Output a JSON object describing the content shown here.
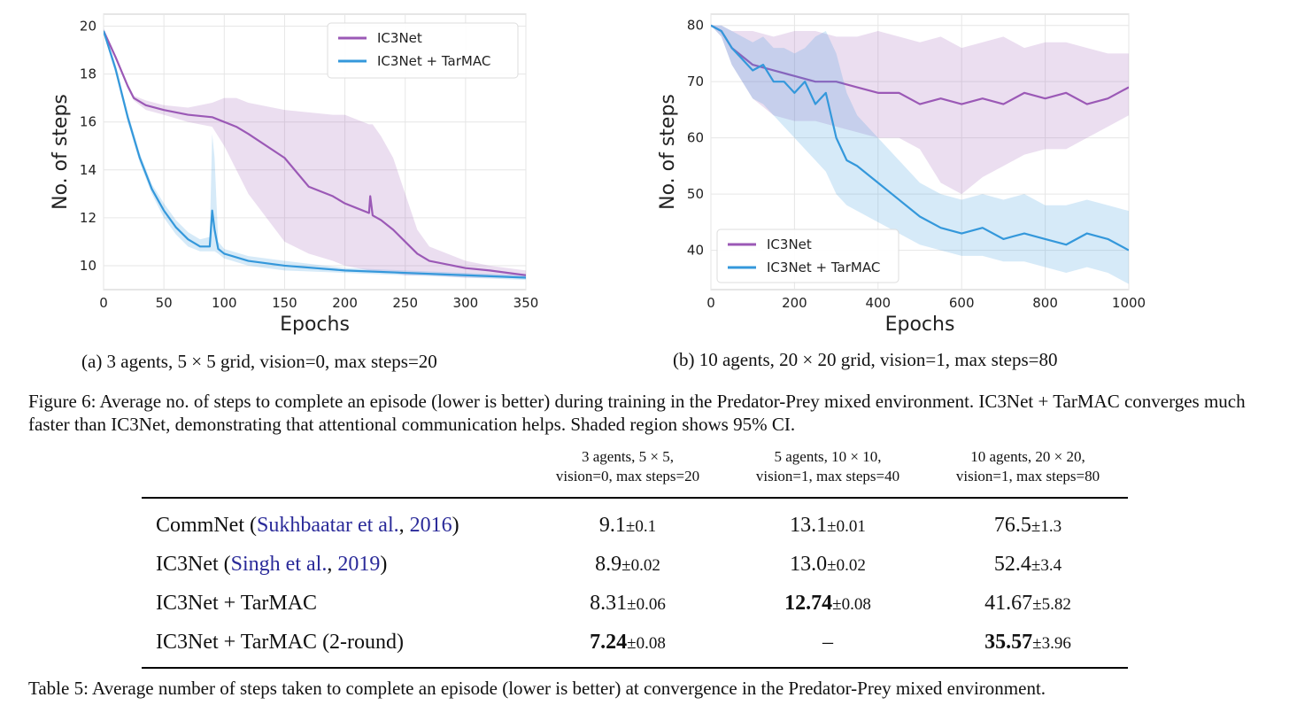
{
  "figure": {
    "caption": "Figure 6: Average no. of steps to complete an episode (lower is better) during training in the Predator-Prey mixed environment. IC3Net + TarMAC converges much faster than IC3Net, demonstrating that attentional communication helps. Shaded region shows 95% CI.",
    "subplots": [
      {
        "subcaption": "(a) 3 agents, 5 × 5 grid, vision=0, max steps=20",
        "xlabel": "Epochs",
        "ylabel": "No. of steps",
        "xticks": [
          "0",
          "50",
          "100",
          "150",
          "200",
          "250",
          "300",
          "350"
        ],
        "yticks": [
          "20",
          "18",
          "16",
          "14",
          "12",
          "10"
        ],
        "legend": [
          "IC3Net",
          "IC3Net + TarMAC"
        ]
      },
      {
        "subcaption": "(b) 10 agents, 20 × 20 grid, vision=1, max steps=80",
        "xlabel": "Epochs",
        "ylabel": "No. of steps",
        "xticks": [
          "0",
          "200",
          "400",
          "600",
          "800",
          "1000"
        ],
        "yticks": [
          "80",
          "70",
          "60",
          "50",
          "40"
        ],
        "legend": [
          "IC3Net",
          "IC3Net + TarMAC"
        ]
      }
    ]
  },
  "chart_data": [
    {
      "type": "line",
      "xlabel": "Epochs",
      "ylabel": "No. of steps",
      "xlim": [
        0,
        350
      ],
      "ylim": [
        9,
        20.5
      ],
      "grid": true,
      "legend_position": "top-right",
      "colors": {
        "IC3Net": "#9b59b6",
        "IC3Net + TarMAC": "#3498db"
      },
      "series": [
        {
          "name": "IC3Net",
          "x": [
            0,
            10,
            20,
            25,
            35,
            50,
            70,
            90,
            100,
            110,
            120,
            150,
            170,
            190,
            200,
            210,
            220,
            221,
            223,
            230,
            240,
            250,
            260,
            270,
            300,
            320,
            350
          ],
          "y": [
            19.8,
            18.7,
            17.5,
            17.0,
            16.7,
            16.5,
            16.3,
            16.2,
            16.0,
            15.8,
            15.5,
            14.5,
            13.3,
            12.9,
            12.6,
            12.4,
            12.2,
            12.9,
            12.1,
            11.9,
            11.5,
            11.0,
            10.5,
            10.2,
            9.9,
            9.8,
            9.6
          ],
          "ci_lower": [
            19.7,
            18.6,
            17.4,
            16.9,
            16.5,
            16.3,
            16.0,
            15.8,
            15.0,
            14.0,
            13.0,
            11.0,
            10.5,
            10.2,
            10.0,
            9.9,
            9.8,
            9.8,
            9.8,
            9.7,
            9.7,
            9.6,
            9.6,
            9.6,
            9.5,
            9.5,
            9.5
          ],
          "ci_upper": [
            19.9,
            18.8,
            17.6,
            17.1,
            16.9,
            16.7,
            16.6,
            16.8,
            17.0,
            17.0,
            16.8,
            16.5,
            16.4,
            16.3,
            16.3,
            16.1,
            15.9,
            15.9,
            15.9,
            15.4,
            14.5,
            13.0,
            11.5,
            10.8,
            10.2,
            10.0,
            9.8
          ]
        },
        {
          "name": "IC3Net + TarMAC",
          "x": [
            0,
            10,
            20,
            30,
            40,
            50,
            60,
            70,
            80,
            88,
            90,
            92,
            95,
            100,
            120,
            150,
            200,
            250,
            300,
            350
          ],
          "y": [
            19.8,
            18.2,
            16.2,
            14.5,
            13.2,
            12.3,
            11.6,
            11.1,
            10.8,
            10.8,
            12.3,
            11.5,
            10.7,
            10.5,
            10.2,
            10.0,
            9.8,
            9.7,
            9.6,
            9.5
          ],
          "ci_lower": [
            19.7,
            18.0,
            16.0,
            14.3,
            13.0,
            12.0,
            11.3,
            10.8,
            10.6,
            10.6,
            10.6,
            10.6,
            10.5,
            10.3,
            10.0,
            9.8,
            9.7,
            9.6,
            9.5,
            9.4
          ],
          "ci_upper": [
            19.9,
            18.4,
            16.4,
            14.7,
            13.4,
            12.6,
            11.9,
            11.4,
            11.1,
            11.2,
            15.5,
            14.5,
            11.0,
            10.7,
            10.4,
            10.2,
            9.9,
            9.8,
            9.7,
            9.6
          ]
        }
      ]
    },
    {
      "type": "line",
      "xlabel": "Epochs",
      "ylabel": "No. of steps",
      "xlim": [
        0,
        1000
      ],
      "ylim": [
        33,
        82
      ],
      "grid": true,
      "legend_position": "bottom-left",
      "colors": {
        "IC3Net": "#9b59b6",
        "IC3Net + TarMAC": "#3498db"
      },
      "series": [
        {
          "name": "IC3Net",
          "x": [
            0,
            25,
            50,
            100,
            150,
            200,
            250,
            300,
            350,
            400,
            450,
            500,
            550,
            600,
            650,
            700,
            750,
            800,
            850,
            900,
            950,
            1000
          ],
          "y": [
            80,
            79,
            76,
            73,
            72,
            71,
            70,
            70,
            69,
            68,
            68,
            66,
            67,
            66,
            67,
            66,
            68,
            67,
            68,
            66,
            67,
            69
          ],
          "ci_lower": [
            80,
            78,
            73,
            67,
            64,
            63,
            63,
            62,
            61,
            60,
            60,
            58,
            52,
            50,
            53,
            55,
            57,
            58,
            58,
            60,
            62,
            64
          ],
          "ci_upper": [
            80,
            80,
            79,
            79,
            78,
            79,
            79,
            78,
            78,
            79,
            78,
            77,
            78,
            76,
            77,
            78,
            76,
            77,
            77,
            76,
            75,
            75
          ]
        },
        {
          "name": "IC3Net + TarMAC",
          "x": [
            0,
            25,
            50,
            75,
            100,
            125,
            150,
            175,
            200,
            225,
            250,
            275,
            300,
            325,
            350,
            400,
            450,
            500,
            550,
            600,
            650,
            700,
            750,
            800,
            850,
            900,
            950,
            1000
          ],
          "y": [
            80,
            79,
            76,
            74,
            72,
            73,
            70,
            70,
            68,
            70,
            66,
            68,
            60,
            56,
            55,
            52,
            49,
            46,
            44,
            43,
            44,
            42,
            43,
            42,
            41,
            43,
            42,
            40
          ],
          "ci_lower": [
            80,
            78,
            73,
            70,
            67,
            66,
            64,
            62,
            60,
            58,
            56,
            54,
            50,
            48,
            47,
            45,
            43,
            41,
            40,
            39,
            39,
            38,
            38,
            37,
            36,
            37,
            36,
            34
          ],
          "ci_upper": [
            80,
            80,
            79,
            78,
            77,
            78,
            76,
            76,
            75,
            76,
            78,
            79,
            75,
            68,
            64,
            60,
            56,
            52,
            50,
            49,
            50,
            49,
            50,
            48,
            48,
            49,
            48,
            47
          ]
        }
      ]
    }
  ],
  "table": {
    "caption": "Table 5: Average number of steps taken to complete an episode (lower is better) at convergence in the Predator-Prey mixed environment.",
    "headers": [
      {
        "line1": "3 agents, 5 × 5,",
        "line2": "vision=0, max steps=20"
      },
      {
        "line1": "5 agents, 10 × 10,",
        "line2": "vision=1, max steps=40"
      },
      {
        "line1": "10 agents, 20 × 20,",
        "line2": "vision=1, max steps=80"
      }
    ],
    "rows": [
      {
        "method": "CommNet",
        "open": " (",
        "cite_name": "Sukhbaatar et al.",
        "sep": ", ",
        "cite_year": "2016",
        "close": ")",
        "cells": [
          {
            "v": "9.1",
            "pm": "±0.1"
          },
          {
            "v": "13.1",
            "pm": "±0.01"
          },
          {
            "v": "76.5",
            "pm": "±1.3"
          }
        ]
      },
      {
        "method": "IC3Net",
        "open": " (",
        "cite_name": "Singh et al.",
        "sep": ", ",
        "cite_year": "2019",
        "close": ")",
        "cells": [
          {
            "v": "8.9",
            "pm": "±0.02"
          },
          {
            "v": "13.0",
            "pm": "±0.02"
          },
          {
            "v": "52.4",
            "pm": "±3.4"
          }
        ]
      },
      {
        "method": "IC3Net + TarMAC",
        "cells": [
          {
            "v": "8.31",
            "pm": "±0.06"
          },
          {
            "v": "12.74",
            "pm": "±0.08"
          },
          {
            "v": "41.67",
            "pm": "±5.82"
          }
        ]
      },
      {
        "method": "IC3Net + TarMAC (2-round)",
        "cells": [
          {
            "v": "7.24",
            "pm": "±0.08"
          },
          {
            "v": "–",
            "pm": ""
          },
          {
            "v": "35.57",
            "pm": "±3.96"
          }
        ]
      }
    ]
  }
}
